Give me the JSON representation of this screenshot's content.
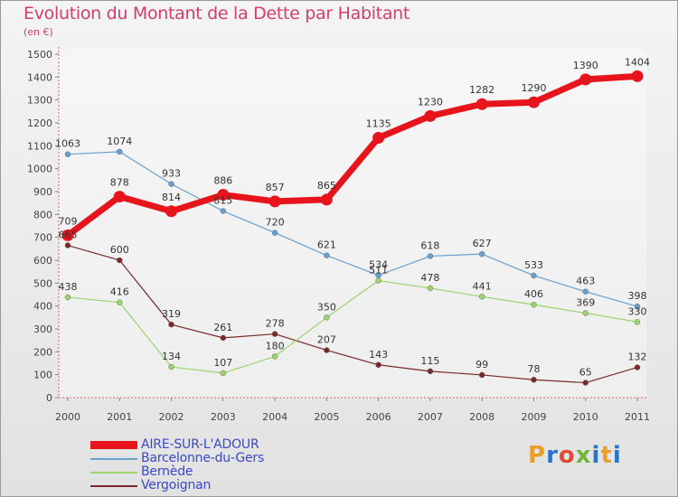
{
  "title": "Evolution du Montant de la Dette par Habitant",
  "subtitle": "(en €)",
  "logo_text": "Proxiti",
  "logo_colors": [
    "#e8a02a",
    "#2c73c7",
    "#e04c36",
    "#72b53a",
    "#2c73c7",
    "#e8a02a",
    "#2c73c7"
  ],
  "chart_data": {
    "type": "line",
    "x": [
      "2000",
      "2001",
      "2002",
      "2003",
      "2004",
      "2005",
      "2006",
      "2007",
      "2008",
      "2009",
      "2010",
      "2011"
    ],
    "ylim": [
      0,
      1500
    ],
    "yticks": [
      0,
      100,
      200,
      300,
      400,
      500,
      600,
      700,
      800,
      900,
      1000,
      1100,
      1200,
      1300,
      1400,
      1500
    ],
    "grid": false,
    "legend_placement": "bottom-left",
    "series": [
      {
        "name": "AIRE-SUR-L'ADOUR",
        "color": "#e8141b",
        "values": [
          709,
          878,
          814,
          886,
          857,
          865,
          1135,
          1230,
          1282,
          1290,
          1390,
          1404
        ]
      },
      {
        "name": "Barcelonne-du-Gers",
        "color": "#6a9fce",
        "values": [
          1063,
          1074,
          933,
          815,
          720,
          621,
          534,
          618,
          627,
          533,
          463,
          398
        ]
      },
      {
        "name": "Bernède",
        "color": "#9ad46a",
        "values": [
          438,
          416,
          134,
          107,
          180,
          350,
          511,
          478,
          441,
          406,
          369,
          330
        ]
      },
      {
        "name": "Vergoignan",
        "color": "#7a2a2a",
        "values": [
          665,
          600,
          319,
          261,
          278,
          207,
          143,
          115,
          99,
          78,
          65,
          132
        ]
      }
    ]
  }
}
